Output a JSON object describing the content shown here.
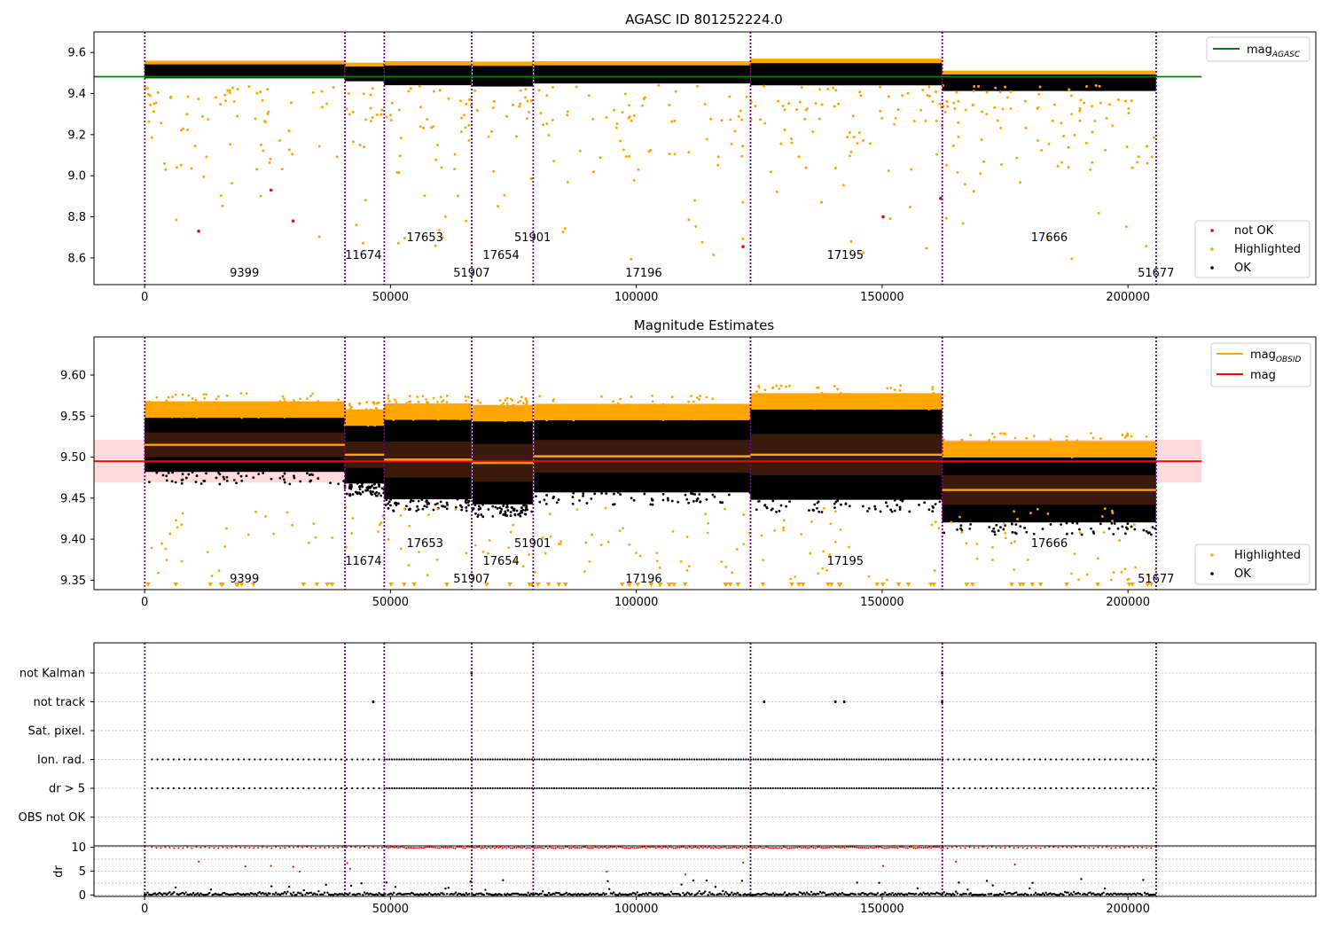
{
  "chart_data": [
    {
      "type": "scatter",
      "title": "AGASC ID 801252224.0",
      "xlim": [
        -10300,
        238200
      ],
      "ylim": [
        8.47,
        9.7
      ],
      "xticks": [
        0,
        50000,
        100000,
        150000,
        200000
      ],
      "yticks": [
        8.6,
        8.8,
        9.0,
        9.2,
        9.4,
        9.6
      ],
      "mag_agasc": 9.482,
      "obs_boundaries": [
        0,
        40700,
        48700,
        66500,
        79000,
        123200,
        162200,
        205700
      ],
      "observations": [
        {
          "label": "9399",
          "x_start": 0,
          "x_end": 40700,
          "mag": 9.515,
          "mag_std": 0.015
        },
        {
          "label": "11674",
          "x_start": 40700,
          "x_end": 48700,
          "mag": 9.503,
          "mag_std": 0.016
        },
        {
          "label": "17653",
          "x_start": 48700,
          "x_end": 66500,
          "mag": 9.497,
          "mag_std": 0.022
        },
        {
          "label": "51907",
          "x_start": 66500,
          "x_end": 66700,
          "mag": 9.497,
          "mag_std": 0.022
        },
        {
          "label": "17654",
          "x_start": 66700,
          "x_end": 79000,
          "mag": 9.493,
          "mag_std": 0.023
        },
        {
          "label": "51901",
          "x_start": 79000,
          "x_end": 79200,
          "mag": 9.493,
          "mag_std": 0.023
        },
        {
          "label": "17196",
          "x_start": 79200,
          "x_end": 123200,
          "mag": 9.501,
          "mag_std": 0.02
        },
        {
          "label": "17195",
          "x_start": 123200,
          "x_end": 162200,
          "mag": 9.503,
          "mag_std": 0.025
        },
        {
          "label": "17666",
          "x_start": 162200,
          "x_end": 205700,
          "mag": 9.46,
          "mag_std": 0.018
        },
        {
          "label": "51677",
          "x_start": 205700,
          "x_end": 205900,
          "mag": 9.46,
          "mag_std": 0.018
        }
      ],
      "not_ok_points": [
        {
          "x": 11000,
          "y": 8.73
        },
        {
          "x": 25700,
          "y": 8.93
        },
        {
          "x": 30200,
          "y": 8.78
        },
        {
          "x": 121700,
          "y": 8.655
        },
        {
          "x": 150200,
          "y": 8.8
        },
        {
          "x": 161900,
          "y": 8.89
        }
      ],
      "legend": [
        "mag_AGASC",
        "not OK",
        "Highlighted",
        "OK"
      ],
      "colors": {
        "ok": "#000000",
        "highlighted": "#ffa500",
        "not_ok": "#ff0000",
        "agasc_line": "#008000",
        "boundary": "#800080"
      }
    },
    {
      "type": "scatter",
      "title": "Magnitude Estimates",
      "xlim": [
        -10300,
        238200
      ],
      "ylim": [
        9.3385,
        9.6465
      ],
      "xticks": [
        0,
        50000,
        100000,
        150000,
        200000
      ],
      "yticks": [
        9.35,
        9.4,
        9.45,
        9.5,
        9.55,
        9.6
      ],
      "mag": 9.495,
      "mag_err": 0.026,
      "legend": [
        "mag_OBSID",
        "mag",
        "Highlighted",
        "OK"
      ],
      "colors": {
        "obsid_line": "#ffa500",
        "mag_line": "#ff0000",
        "mag_band": "#ffc8cc"
      }
    },
    {
      "type": "scatter",
      "title": "",
      "xlim": [
        -10300,
        238200
      ],
      "categories": [
        "not Kalman",
        "not track",
        "Sat. pixel.",
        "Ion. rad.",
        "dr > 5",
        "OBS not OK"
      ],
      "flag_points": {
        "not Kalman": [
          66500,
          162200
        ],
        "not track": [
          46500,
          126000,
          140500,
          142300,
          162200
        ]
      }
    },
    {
      "type": "scatter",
      "title": "",
      "ylabel": "dr",
      "xlim": [
        -10300,
        238200
      ],
      "ylim": [
        -0.3,
        10.3
      ],
      "xticks": [
        0,
        50000,
        100000,
        150000,
        200000
      ],
      "yticks": [
        0,
        5,
        10
      ],
      "outlier_points": [
        {
          "x": 11000,
          "y": 7.0
        },
        {
          "x": 20500,
          "y": 6.0
        },
        {
          "x": 25700,
          "y": 6.1
        },
        {
          "x": 30200,
          "y": 5.9
        },
        {
          "x": 31500,
          "y": 4.9
        },
        {
          "x": 41200,
          "y": 6.7
        },
        {
          "x": 41800,
          "y": 5.5
        },
        {
          "x": 94000,
          "y": 4.9
        },
        {
          "x": 110000,
          "y": 4.3
        },
        {
          "x": 121700,
          "y": 6.8
        },
        {
          "x": 150200,
          "y": 6.1
        },
        {
          "x": 165000,
          "y": 7.0
        },
        {
          "x": 177000,
          "y": 6.4
        }
      ]
    }
  ]
}
